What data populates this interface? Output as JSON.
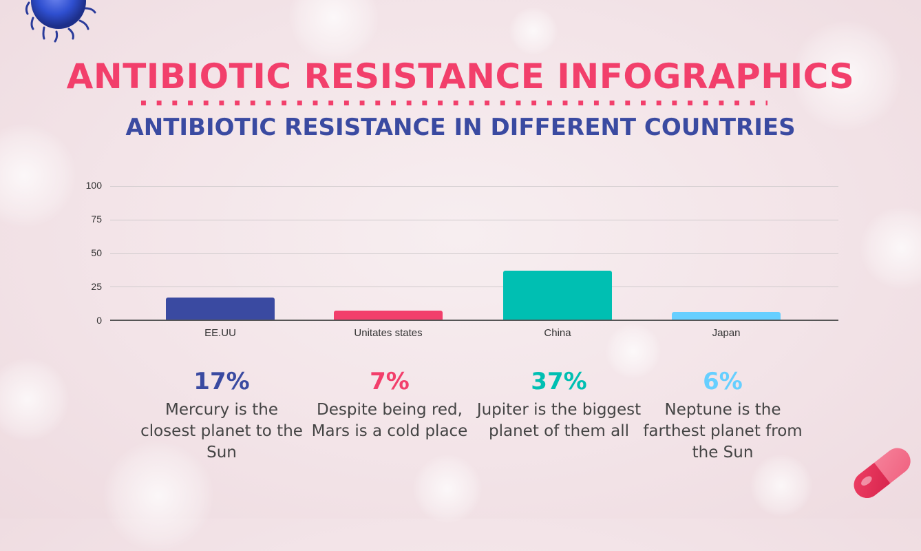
{
  "header": {
    "title": "ANTIBIOTIC RESISTANCE INFOGRAPHICS",
    "subtitle": "ANTIBIOTIC RESISTANCE IN DIFFERENT COUNTRIES"
  },
  "colors": {
    "title": "#f23f6b",
    "subtitle": "#3a4aa1",
    "series": [
      "#3a4aa1",
      "#f23f6b",
      "#00bfb2",
      "#66cfff"
    ]
  },
  "chart_data": {
    "type": "bar",
    "title": "",
    "xlabel": "",
    "ylabel": "",
    "categories": [
      "EE.UU",
      "Unitates states",
      "China",
      "Japan"
    ],
    "values": [
      17,
      7,
      37,
      6
    ],
    "bar_colors": [
      "#3a4aa1",
      "#f23f6b",
      "#00bfb2",
      "#66cfff"
    ],
    "ylim": [
      0,
      100
    ],
    "yticks": [
      "100",
      "75",
      "50",
      "25",
      "0"
    ],
    "grid": true,
    "legend": "none"
  },
  "stats": [
    {
      "value": "17%",
      "description": "Mercury is the closest planet to the Sun",
      "color": "#3a4aa1"
    },
    {
      "value": "7%",
      "description": "Despite being red, Mars is a cold place",
      "color": "#f23f6b"
    },
    {
      "value": "37%",
      "description": "Jupiter is the biggest planet of them all",
      "color": "#00bfb2"
    },
    {
      "value": "6%",
      "description": "Neptune is the farthest planet from the Sun",
      "color": "#66cfff"
    }
  ],
  "decorations": [
    "virus-icon",
    "pill-icon"
  ]
}
